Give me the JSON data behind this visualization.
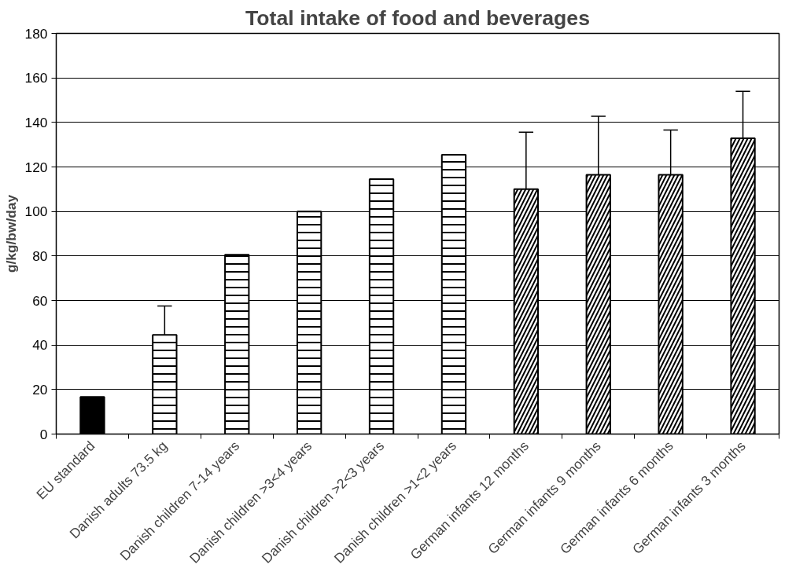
{
  "chart_data": {
    "type": "bar",
    "title": "Total intake of food and beverages",
    "ylabel": "g/kg/bw/day",
    "categories": [
      "EU standard",
      "Danish adults 73.5 kg",
      "Danish children 7-14 years",
      "Danish children >3<4 years",
      "Danish children >2<3 years",
      "Danish children >1<2 years",
      "German infants 12 months",
      "German infants 9 months",
      "German infants 6 months",
      "German infants 3 months"
    ],
    "series": [
      {
        "color": "#000000",
        "values": [
          16.7,
          null,
          null,
          null,
          null,
          null,
          null,
          null,
          null,
          null
        ]
      },
      {
        "color": "#ffffff",
        "values": [
          null,
          44.6,
          80.6,
          100,
          114.5,
          125.5,
          null,
          null,
          null,
          null
        ],
        "errors": [
          null,
          [
            44.6,
            57.5
          ],
          null,
          null,
          null,
          null,
          null,
          null,
          null,
          null
        ]
      },
      {
        "color": "#ffffff",
        "values": [
          null,
          null,
          null,
          null,
          null,
          null,
          110,
          116.5,
          116.5,
          132.9
        ],
        "errors": [
          null,
          null,
          null,
          null,
          null,
          null,
          [
            110,
            135.6
          ],
          [
            116.5,
            142.8
          ],
          [
            116.5,
            136.6
          ],
          [
            132.9,
            154
          ]
        ]
      }
    ],
    "ylim": [
      0,
      180
    ],
    "yticks": [
      0,
      20,
      40,
      60,
      80,
      100,
      120,
      140,
      160,
      180
    ],
    "grid": "y"
  }
}
